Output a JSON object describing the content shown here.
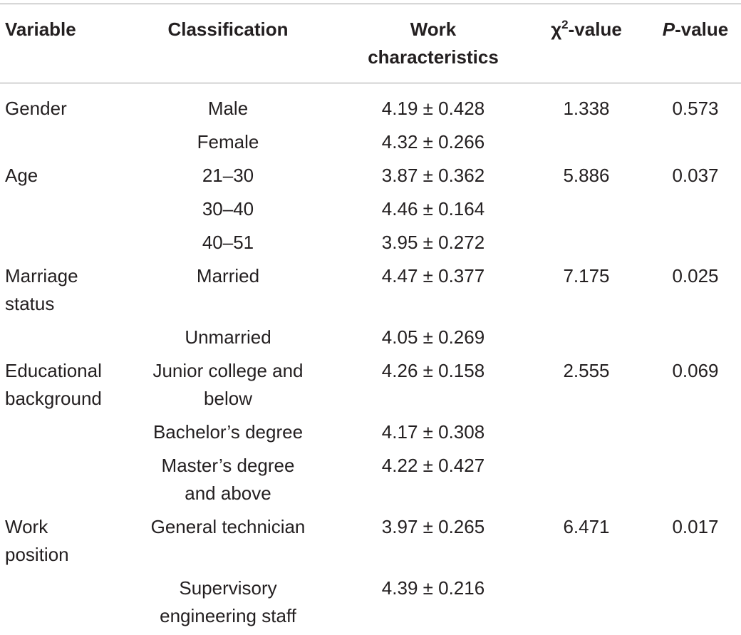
{
  "header": {
    "variable": "Variable",
    "classification": "Classification",
    "work_characteristics": [
      "Work",
      "characteristics"
    ],
    "chi_symbol": "χ",
    "chi_sup": "2",
    "chi_suffix": "-value",
    "p_italic": "P",
    "p_suffix": "-value"
  },
  "rows": [
    {
      "variable": [
        "Gender"
      ],
      "classification": [
        "Male"
      ],
      "wc": "4.19 ± 0.428",
      "chi": "1.338",
      "p": "0.573"
    },
    {
      "variable": [],
      "classification": [
        "Female"
      ],
      "wc": "4.32 ± 0.266",
      "chi": "",
      "p": ""
    },
    {
      "variable": [
        "Age"
      ],
      "classification": [
        "21–30"
      ],
      "wc": "3.87 ± 0.362",
      "chi": "5.886",
      "p": "0.037"
    },
    {
      "variable": [],
      "classification": [
        "30–40"
      ],
      "wc": "4.46 ± 0.164",
      "chi": "",
      "p": ""
    },
    {
      "variable": [],
      "classification": [
        "40–51"
      ],
      "wc": "3.95 ± 0.272",
      "chi": "",
      "p": ""
    },
    {
      "variable": [
        "Marriage",
        "status"
      ],
      "classification": [
        "Married"
      ],
      "wc": "4.47 ± 0.377",
      "chi": "7.175",
      "p": "0.025"
    },
    {
      "variable": [],
      "classification": [
        "Unmarried"
      ],
      "wc": "4.05 ± 0.269",
      "chi": "",
      "p": ""
    },
    {
      "variable": [
        "Educational",
        "background"
      ],
      "classification": [
        "Junior college and",
        "below"
      ],
      "wc": "4.26 ± 0.158",
      "chi": "2.555",
      "p": "0.069"
    },
    {
      "variable": [],
      "classification": [
        "Bachelor’s degree"
      ],
      "wc": "4.17 ± 0.308",
      "chi": "",
      "p": ""
    },
    {
      "variable": [],
      "classification": [
        "Master’s degree",
        "and above"
      ],
      "wc": "4.22 ± 0.427",
      "chi": "",
      "p": ""
    },
    {
      "variable": [
        "Work",
        "position"
      ],
      "classification": [
        "General technician"
      ],
      "wc": "3.97 ± 0.265",
      "chi": "6.471",
      "p": "0.017"
    },
    {
      "variable": [],
      "classification": [
        "Supervisory",
        "engineering staff"
      ],
      "wc": "4.39 ± 0.216",
      "chi": "",
      "p": ""
    }
  ]
}
